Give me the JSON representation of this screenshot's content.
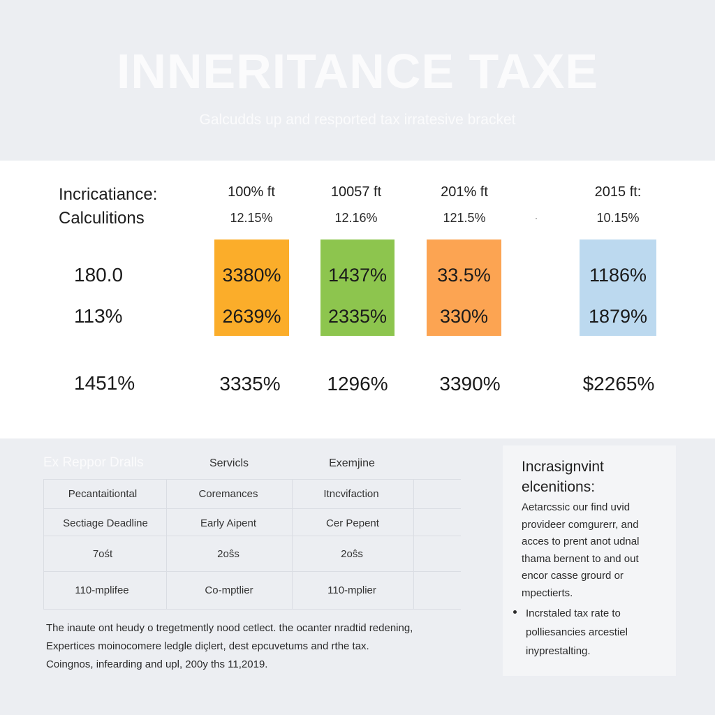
{
  "header": {
    "title": "INNERITANCE TAXE",
    "subtitle": "Galcudds up and resported tax irratesive bracket"
  },
  "calculations": {
    "title_line1": "Incricatiance:",
    "title_line2": "Calculitions",
    "row_labels": [
      "180.0",
      "113%",
      "1451%"
    ],
    "columns": [
      {
        "header": "100% ft",
        "sub": "12.15%",
        "values": [
          "3380%",
          "2639%"
        ],
        "total": "3335%",
        "color": "#fbad2a"
      },
      {
        "header": "10057 ft",
        "sub": "12.16%",
        "values": [
          "1437%",
          "2335%"
        ],
        "total": "1296%",
        "color": "#8dc54e"
      },
      {
        "header": "201% ft",
        "sub": "121.5%",
        "values": [
          "33.5%",
          "330%"
        ],
        "total": "3390%",
        "color": "#fca452"
      },
      {
        "header": "2015 ft:",
        "sub": "10.15%",
        "values": [
          "1186%",
          "1879%"
        ],
        "total": "$2265%",
        "color": "#bcd9ef"
      }
    ]
  },
  "report": {
    "heading": "Ex Reppor Dralls",
    "col_headers": [
      "Servicls",
      "Exemjine"
    ],
    "rows": [
      [
        "Pecantaitiontal",
        "Coremances",
        "Itncvifaction"
      ],
      [
        "Sectiage Deadline",
        "Early Aipent",
        "Cer Pepent"
      ],
      [
        "7ośt",
        "2oŝs",
        "2oŝs"
      ],
      [
        "110-mplifee",
        "Co-mptlier",
        "110-mplier"
      ]
    ],
    "footnote": [
      "The inaute ont heudy o tregetmently nood cetlect. the ocanter nradtid redening,",
      "Expertices moinocomere ledgle diçlert, dest epcuvetums and rthe tax.",
      "Coingnos, infearding and upl, 200y ths 11,2019."
    ]
  },
  "sidebar": {
    "title_line1": "Incrasignvint",
    "title_line2": "elcenitions:",
    "body_lines": [
      "Aetarcssic our find uvid",
      "provideer comgurerr, and",
      "acces to prent anot udnal",
      "thama bernent to and out",
      "encor casse grourd or",
      "mpectierts."
    ],
    "bullet_line1": "Incrstaled tax rate to",
    "bullet_line2": "polliesancies arcestiel",
    "bullet_line3": "inyprestalting."
  }
}
